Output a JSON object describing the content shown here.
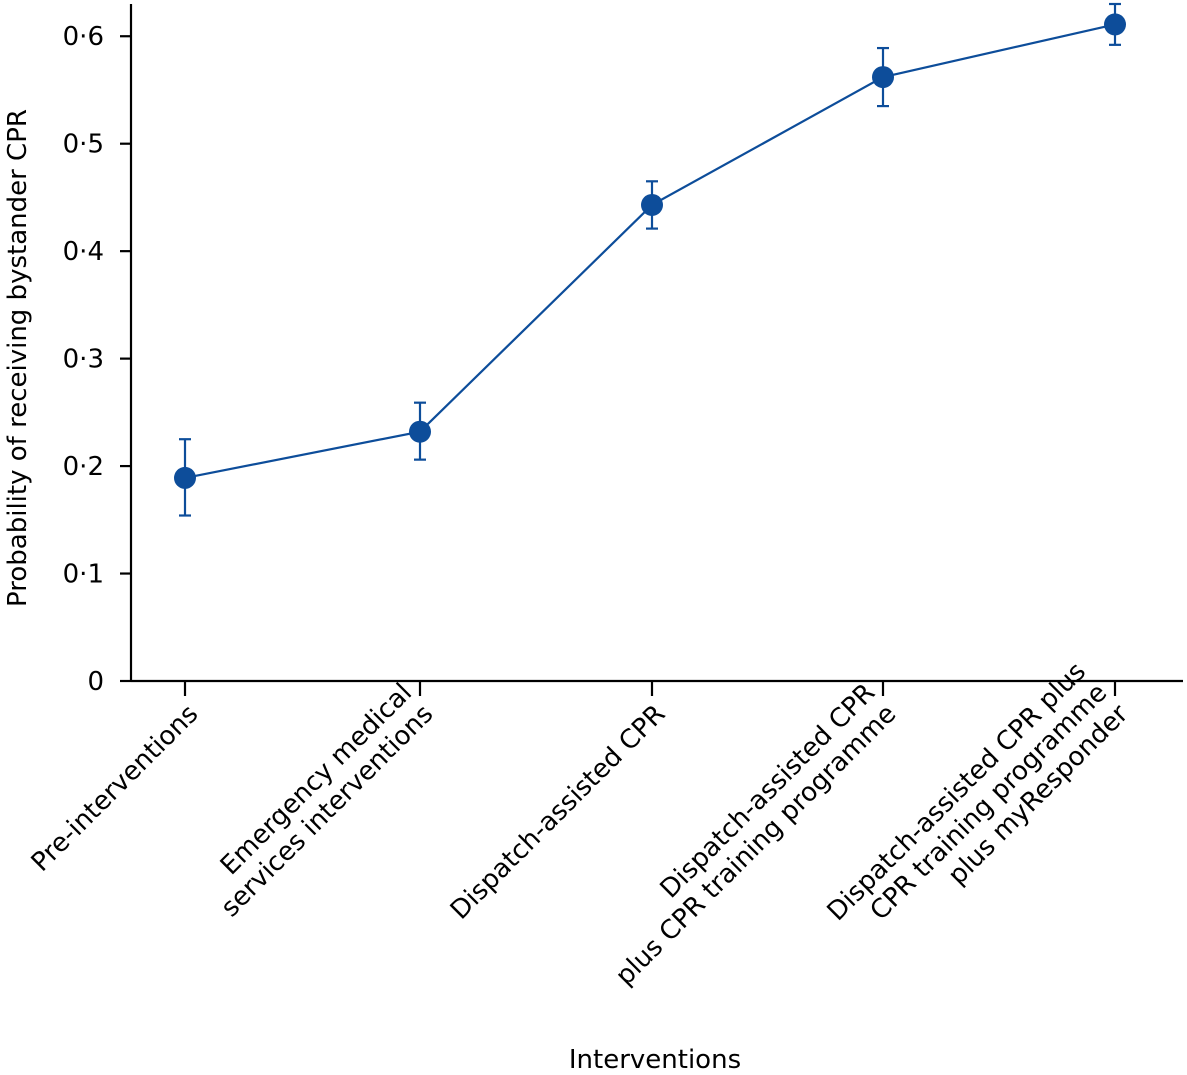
{
  "chart_data": {
    "type": "line",
    "title": "",
    "xlabel": "Interventions",
    "ylabel": "Probability of receiving bystander CPR",
    "ylim": [
      0,
      0.63
    ],
    "yticks": [
      {
        "value": 0,
        "label": "0"
      },
      {
        "value": 0.1,
        "label": "0·1"
      },
      {
        "value": 0.2,
        "label": "0·2"
      },
      {
        "value": 0.3,
        "label": "0·3"
      },
      {
        "value": 0.4,
        "label": "0·4"
      },
      {
        "value": 0.5,
        "label": "0·5"
      },
      {
        "value": 0.6,
        "label": "0·6"
      }
    ],
    "categories": [
      {
        "lines": [
          "Pre-interventions"
        ]
      },
      {
        "lines": [
          "Emergency medical",
          "services interventions"
        ]
      },
      {
        "lines": [
          "Dispatch-assisted CPR"
        ]
      },
      {
        "lines": [
          "Dispatch-assisted CPR",
          "plus CPR training programme"
        ]
      },
      {
        "lines": [
          "Dispatch-assisted CPR plus",
          "CPR training programme",
          "plus myResponder"
        ]
      }
    ],
    "series": [
      {
        "name": "Probability of receiving bystander CPR",
        "color": "#0d4d9a",
        "values": [
          0.189,
          0.232,
          0.443,
          0.562,
          0.611
        ],
        "lower": [
          0.154,
          0.206,
          0.421,
          0.535,
          0.592
        ],
        "upper": [
          0.225,
          0.259,
          0.465,
          0.589,
          0.63
        ]
      }
    ]
  }
}
